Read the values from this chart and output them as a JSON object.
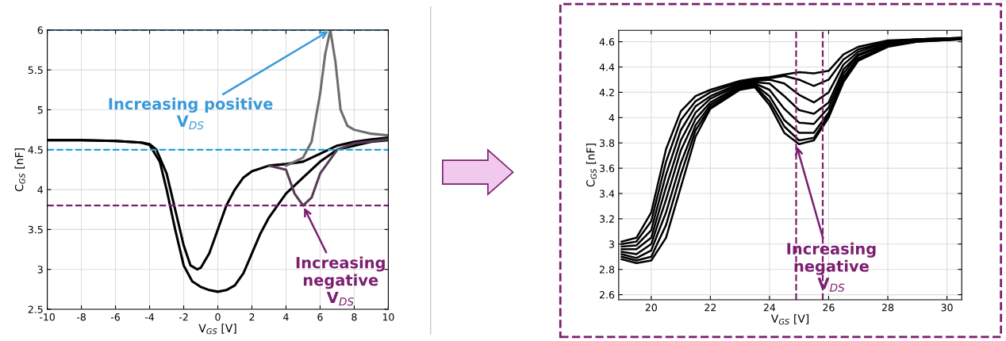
{
  "chart_data": [
    {
      "type": "line",
      "xlabel": "V$_{GS}$ [V]",
      "ylabel": "C$_{GS}$ [nF]",
      "xlim": [
        -10,
        10
      ],
      "ylim": [
        2.5,
        6
      ],
      "xticks": [
        -10,
        -8,
        -6,
        -4,
        -2,
        0,
        2,
        4,
        6,
        8,
        10
      ],
      "yticks": [
        2.5,
        3,
        3.5,
        4,
        4.5,
        5,
        5.5,
        6
      ],
      "grid": true,
      "line_style": "solid",
      "series": [
        {
          "color": "#000000",
          "x": [
            -10,
            -8,
            -6,
            -4.5,
            -4,
            -3.6,
            -3,
            -2.5,
            -2,
            -1.6,
            -1.2,
            -1,
            -0.5,
            0,
            0.5,
            1,
            1.5,
            2,
            3,
            4,
            5,
            6,
            7,
            8,
            9,
            10
          ],
          "values": [
            4.62,
            4.62,
            4.61,
            4.59,
            4.57,
            4.5,
            4.2,
            3.75,
            3.3,
            3.05,
            3.0,
            3.02,
            3.2,
            3.5,
            3.8,
            4.0,
            4.15,
            4.23,
            4.3,
            4.32,
            4.35,
            4.45,
            4.55,
            4.6,
            4.63,
            4.65
          ]
        },
        {
          "color": "#000000",
          "x": [
            -10,
            -8,
            -6,
            -4.5,
            -4,
            -3.4,
            -3,
            -2.5,
            -2,
            -1.5,
            -1,
            -0.5,
            0,
            0.5,
            1,
            1.5,
            2,
            2.5,
            3,
            4,
            5,
            6,
            7,
            8,
            9,
            10
          ],
          "values": [
            4.62,
            4.62,
            4.61,
            4.59,
            4.56,
            4.35,
            4.0,
            3.5,
            3.05,
            2.85,
            2.78,
            2.74,
            2.72,
            2.74,
            2.8,
            2.95,
            3.2,
            3.45,
            3.65,
            3.95,
            4.15,
            4.35,
            4.5,
            4.55,
            4.6,
            4.62
          ]
        },
        {
          "color": "#6e6e6e",
          "x": [
            4,
            5,
            5.5,
            6,
            6.3,
            6.6,
            6.9,
            7.2,
            7.6,
            8,
            9,
            10
          ],
          "values": [
            4.3,
            4.4,
            4.6,
            5.2,
            5.7,
            6.0,
            5.6,
            5.0,
            4.8,
            4.75,
            4.7,
            4.68
          ]
        },
        {
          "color": "#5a3a55",
          "x": [
            3,
            4,
            4.5,
            5,
            5.5,
            6,
            7,
            8,
            10
          ],
          "values": [
            4.3,
            4.25,
            3.95,
            3.8,
            3.9,
            4.2,
            4.5,
            4.58,
            4.63
          ]
        }
      ],
      "ref_lines": [
        {
          "axis": "y",
          "value": 6,
          "label": null,
          "color": "#1ea3d9",
          "line_style": "dashed"
        },
        {
          "axis": "y",
          "value": 4.5,
          "label": null,
          "color": "#1ea3d9",
          "line_style": "dashed"
        },
        {
          "axis": "y",
          "value": 3.8,
          "label": null,
          "color": "#7b1f70",
          "line_style": "dashed"
        }
      ],
      "annotations": [
        {
          "text": "Increasing positive\nV$_{DS}$",
          "x": 6.6,
          "y": 6
        },
        {
          "text": "Increasing\nnegative\nV$_{DS}$",
          "x": 5,
          "y": 3.8
        }
      ]
    },
    {
      "type": "line",
      "xlabel": "V$_{GS}$ [V]",
      "ylabel": "C$_{GS}$ [nF]",
      "xlim": [
        18.9,
        30.5
      ],
      "ylim": [
        2.56,
        4.69
      ],
      "xticks": [
        20,
        22,
        24,
        26,
        28,
        30
      ],
      "yticks": [
        2.6,
        2.8,
        3,
        3.2,
        3.4,
        3.6,
        3.8,
        4,
        4.2,
        4.4,
        4.6
      ],
      "grid": true,
      "line_style": "solid",
      "x": [
        19,
        19.5,
        20,
        20.5,
        21,
        21.5,
        22,
        23,
        23.5,
        24,
        24.5,
        25,
        25.5,
        26,
        26.5,
        27,
        28,
        29,
        30.5
      ],
      "series": [
        {
          "color": "#000000",
          "values": [
            3.02,
            3.05,
            3.25,
            3.75,
            4.05,
            4.17,
            4.22,
            4.29,
            4.31,
            4.32,
            4.34,
            4.36,
            4.35,
            4.37,
            4.5,
            4.56,
            4.61,
            4.62,
            4.63
          ]
        },
        {
          "color": "#000000",
          "values": [
            3.0,
            3.02,
            3.18,
            3.65,
            3.98,
            4.13,
            4.2,
            4.28,
            4.3,
            4.31,
            4.33,
            4.3,
            4.25,
            4.3,
            4.46,
            4.54,
            4.6,
            4.62,
            4.63
          ]
        },
        {
          "color": "#000000",
          "values": [
            2.98,
            2.99,
            3.11,
            3.55,
            3.9,
            4.09,
            4.17,
            4.27,
            4.29,
            4.3,
            4.27,
            4.18,
            4.12,
            4.2,
            4.42,
            4.52,
            4.6,
            4.62,
            4.63
          ]
        },
        {
          "color": "#000000",
          "values": [
            2.96,
            2.96,
            3.05,
            3.45,
            3.82,
            4.04,
            4.15,
            4.26,
            4.28,
            4.27,
            4.17,
            4.06,
            4.03,
            4.12,
            4.38,
            4.5,
            4.59,
            4.61,
            4.63
          ]
        },
        {
          "color": "#000000",
          "values": [
            2.94,
            2.92,
            3.0,
            3.35,
            3.74,
            3.99,
            4.12,
            4.25,
            4.27,
            4.22,
            4.07,
            3.96,
            3.95,
            4.08,
            4.35,
            4.49,
            4.58,
            4.61,
            4.62
          ]
        },
        {
          "color": "#000000",
          "values": [
            2.92,
            2.89,
            2.95,
            3.25,
            3.64,
            3.94,
            4.1,
            4.24,
            4.26,
            4.17,
            3.98,
            3.88,
            3.88,
            4.04,
            4.32,
            4.47,
            4.57,
            4.61,
            4.62
          ]
        },
        {
          "color": "#000000",
          "values": [
            2.9,
            2.87,
            2.9,
            3.15,
            3.55,
            3.9,
            4.08,
            4.23,
            4.25,
            4.13,
            3.93,
            3.82,
            3.84,
            4.02,
            4.3,
            4.46,
            4.57,
            4.6,
            4.62
          ]
        },
        {
          "color": "#000000",
          "values": [
            2.88,
            2.85,
            2.87,
            3.05,
            3.45,
            3.85,
            4.07,
            4.22,
            4.24,
            4.1,
            3.88,
            3.79,
            3.82,
            4.0,
            4.28,
            4.45,
            4.56,
            4.6,
            4.62
          ]
        }
      ],
      "ref_lines": [
        {
          "axis": "x",
          "value": 24.9,
          "label": null,
          "color": "#7b1f70",
          "line_style": "dashed"
        },
        {
          "axis": "x",
          "value": 25.8,
          "label": null,
          "color": "#7b1f70",
          "line_style": "dashed"
        }
      ],
      "annotations": [
        {
          "text": "Increasing\nnegative\nV$_{DS}$",
          "x": 24.9,
          "y": 3.79
        }
      ]
    }
  ]
}
